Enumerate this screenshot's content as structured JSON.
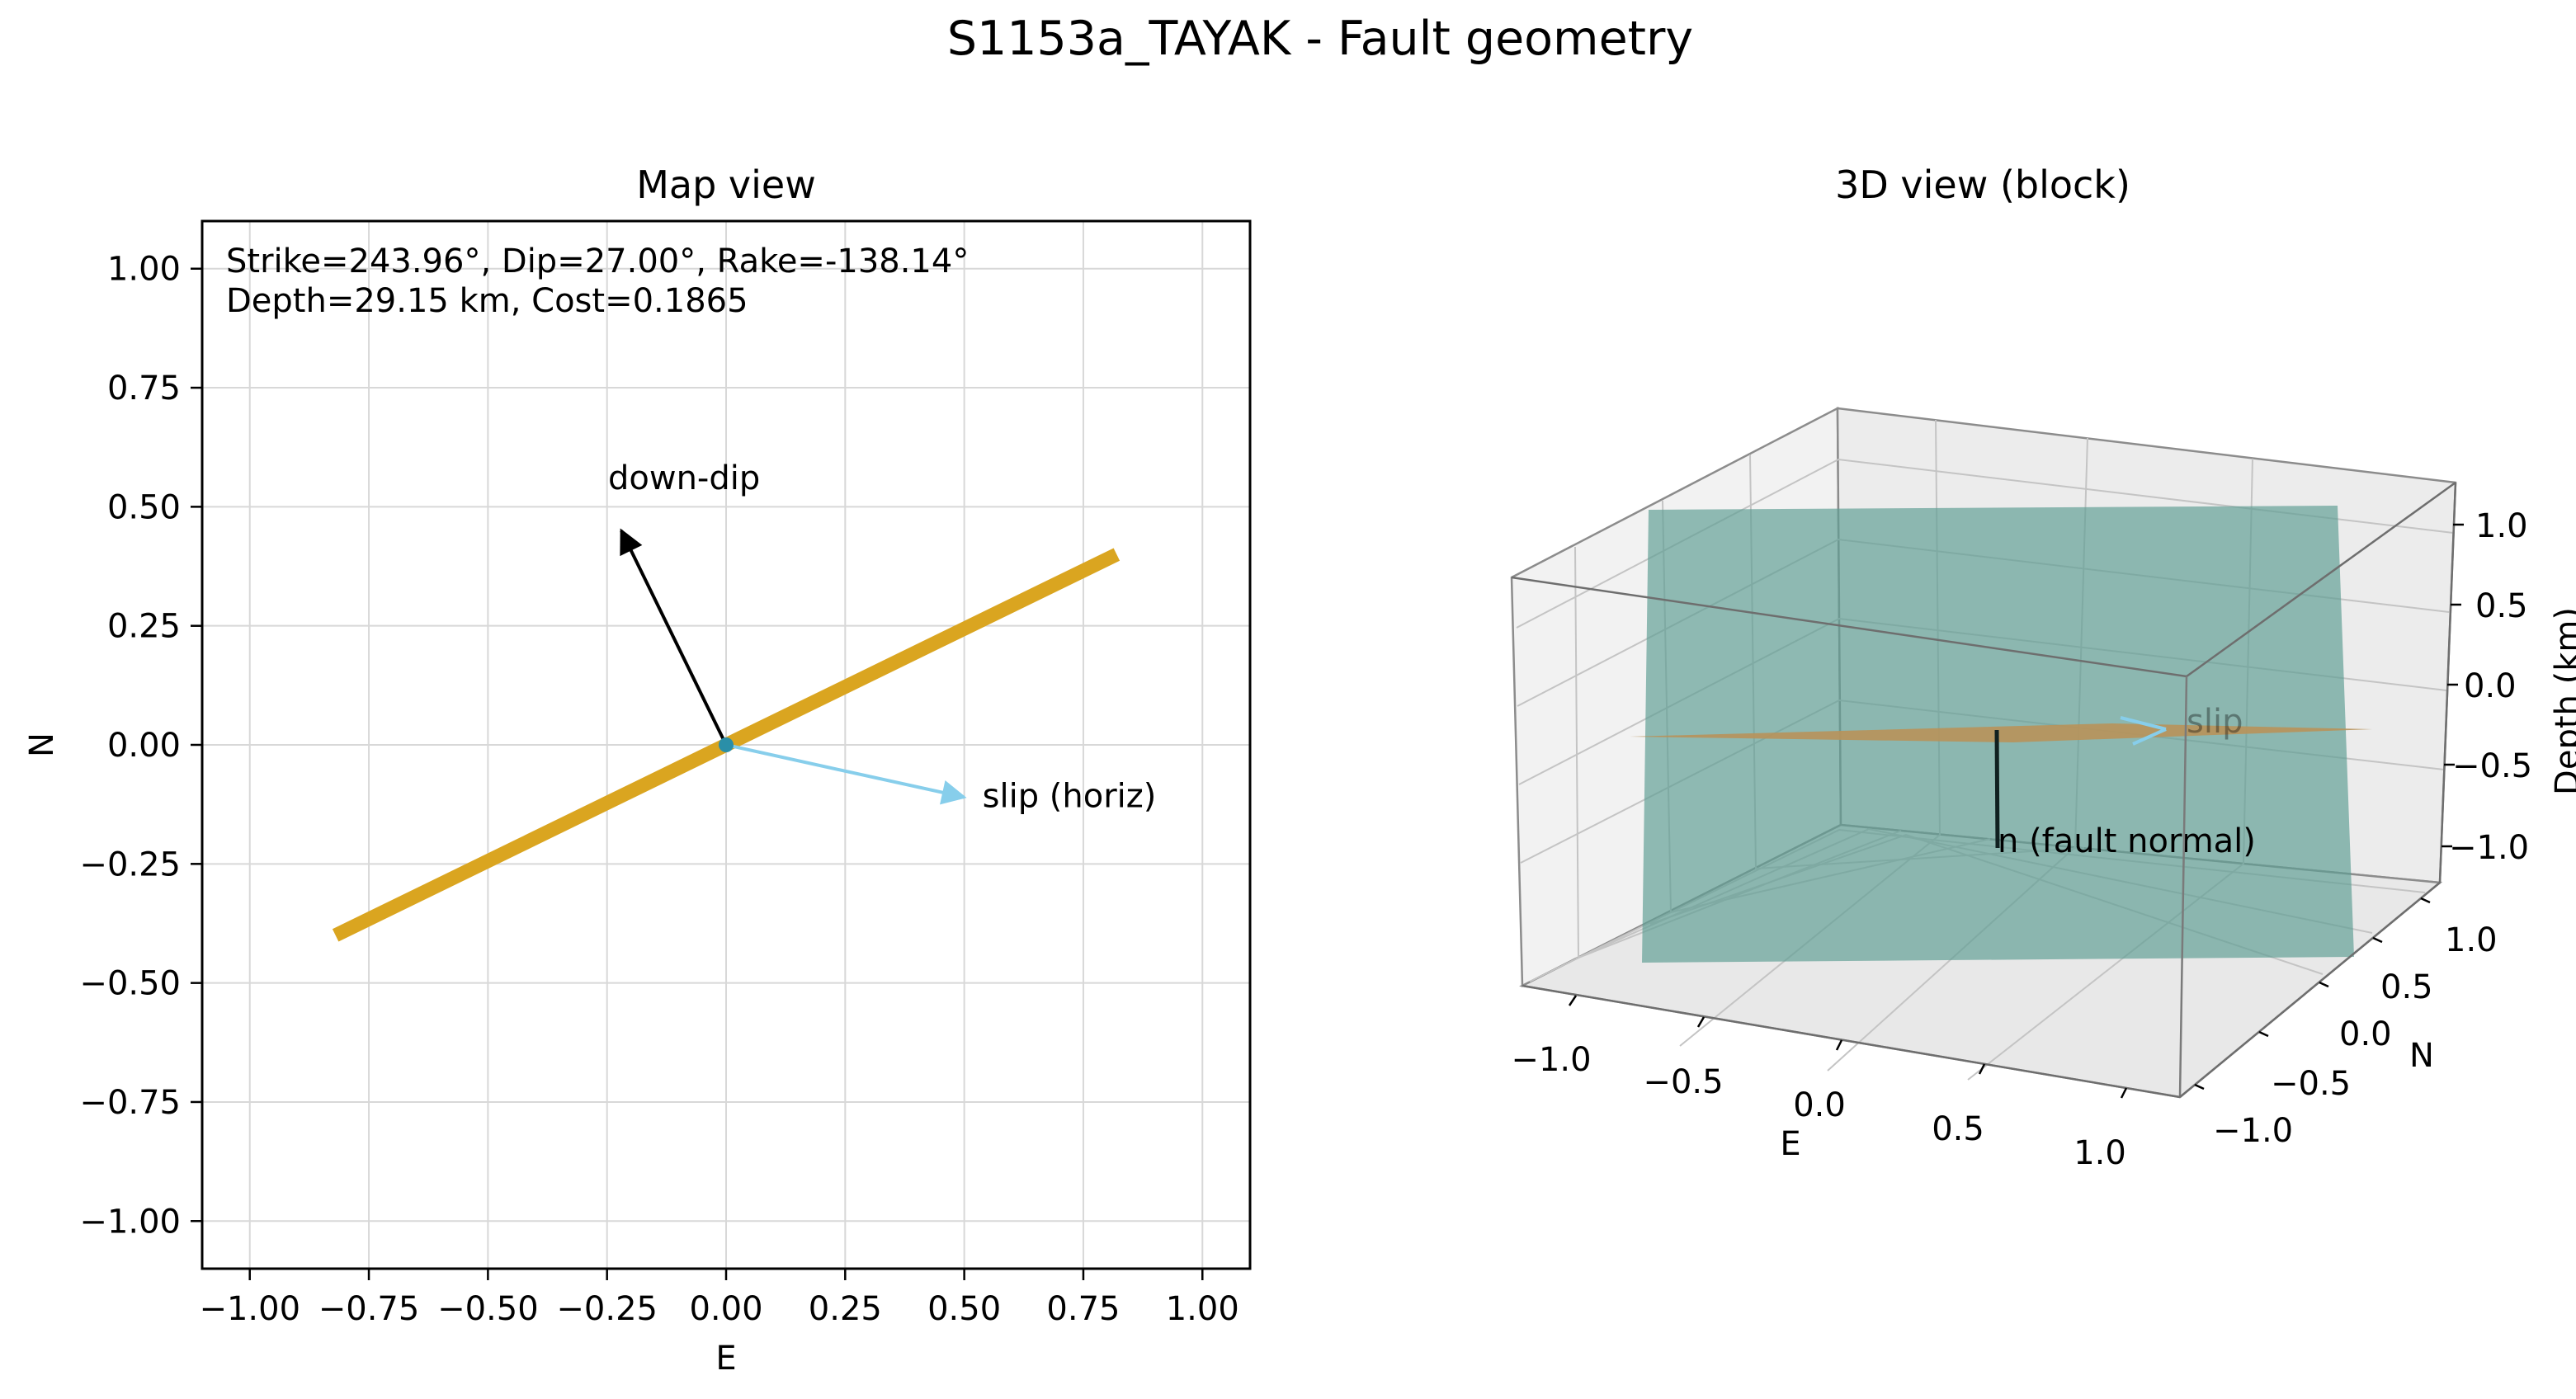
{
  "figure": {
    "suptitle": "S1153a_TAYAK - Fault geometry"
  },
  "chart_data": [
    {
      "type": "line",
      "title": "Map view",
      "xlabel": "E",
      "ylabel": "N",
      "xlim": [
        -1.1,
        1.1
      ],
      "ylim": [
        -1.1,
        1.1
      ],
      "grid": true,
      "xticks": [
        -1.0,
        -0.75,
        -0.5,
        -0.25,
        0.0,
        0.25,
        0.5,
        0.75,
        1.0
      ],
      "yticks": [
        -1.0,
        -0.75,
        -0.5,
        -0.25,
        0.0,
        0.25,
        0.5,
        0.75,
        1.0
      ],
      "xtick_labels": [
        "−1.00",
        "−0.75",
        "−0.50",
        "−0.25",
        "0.00",
        "0.25",
        "0.50",
        "0.75",
        "1.00"
      ],
      "ytick_labels": [
        "−1.00",
        "−0.75",
        "−0.50",
        "−0.25",
        "0.00",
        "0.25",
        "0.50",
        "0.75",
        "1.00"
      ],
      "info_lines": [
        "Strike=243.96°, Dip=27.00°, Rake=-138.14°",
        "Depth=29.15 km, Cost=0.1865"
      ],
      "fault_trace": {
        "color": "#DAA520",
        "x": [
          -0.82,
          0.82
        ],
        "y": [
          -0.4,
          0.4
        ]
      },
      "center_point": {
        "x": 0.0,
        "y": 0.0,
        "color": "#2A8FA8"
      },
      "arrows": [
        {
          "label": "down-dip",
          "color": "#000000",
          "from": [
            0.0,
            0.0
          ],
          "to": [
            -0.22,
            0.45
          ]
        },
        {
          "label": "slip (horiz)",
          "color": "#87CEEB",
          "from": [
            0.0,
            0.0
          ],
          "to": [
            0.5,
            -0.11
          ]
        }
      ]
    },
    {
      "type": "surface3d",
      "title": "3D view (block)",
      "xlabel": "E",
      "ylabel": "N",
      "zlabel": "Depth (km)",
      "xticks": [
        "−1.0",
        "−0.5",
        "0.0",
        "0.5",
        "1.0"
      ],
      "yticks": [
        "−1.0",
        "−0.5",
        "0.0",
        "0.5",
        "1.0"
      ],
      "zticks": [
        "1.0",
        "0.5",
        "0.0",
        "−0.5",
        "−1.0"
      ],
      "fault_plane_color": "#5F9E94",
      "horizontal_plane_color": "#B8925A",
      "normal_label": "n (fault normal)",
      "slip_label": "slip"
    }
  ]
}
